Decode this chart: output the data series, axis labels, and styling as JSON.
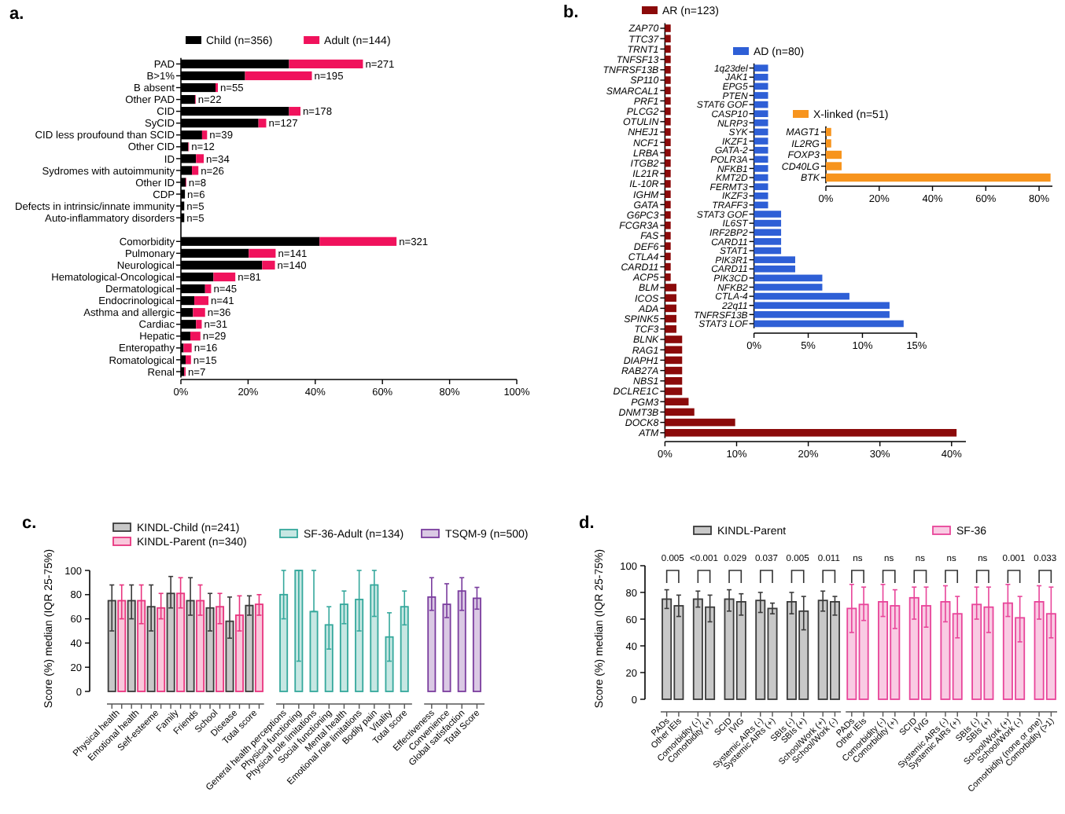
{
  "chart_data": [
    {
      "type": "bar",
      "title": "a.",
      "orientation": "horizontal",
      "stacked": true,
      "legend": "top",
      "categories": [
        "PAD",
        "B>1%",
        "B absent",
        "Other PAD",
        "CID",
        "SyCID",
        "CID less proufound than SCID",
        "Other CID",
        "ID",
        "Sydromes with autoimmunity",
        "Other ID",
        "CDP",
        "Defects in intrinsic/innate immunity",
        "Auto-inflammatory disorders",
        null,
        "Comorbidity",
        "Pulmonary",
        "Neurological",
        "Hematological-Oncological",
        "Dermatological",
        "Endocrinological",
        "Asthma and allergic",
        "Cardiac",
        "Hepatic",
        "Enteropathy",
        "Romatological",
        "Renal"
      ],
      "series": [
        {
          "name": "Child (n=356)",
          "color": "#000000",
          "values": [
            32.2,
            19.1,
            10.3,
            4.2,
            32.2,
            23.1,
            6.3,
            2.2,
            4.5,
            3.3,
            1.4,
            1.2,
            1.0,
            1.0,
            null,
            41.3,
            20.2,
            24.2,
            9.7,
            7.2,
            4.0,
            3.6,
            4.5,
            2.8,
            0.8,
            1.4,
            1.0
          ]
        },
        {
          "name": "Adult (n=144)",
          "color": "#f0125c",
          "values": [
            22.0,
            19.9,
            0.7,
            0.2,
            3.4,
            2.3,
            1.5,
            0.2,
            2.3,
            1.9,
            0.2,
            0,
            0,
            0,
            null,
            22.9,
            8.0,
            3.8,
            6.5,
            1.8,
            4.2,
            3.6,
            1.7,
            3.0,
            2.4,
            1.6,
            0.4
          ]
        }
      ],
      "annotations": [
        "n=271",
        "n=195",
        "n=55",
        "n=22",
        "n=178",
        "n=127",
        "n=39",
        "n=12",
        "n=34",
        "n=26",
        "n=8",
        "n=6",
        "n=5",
        "n=5",
        "n=321",
        "n=141",
        "n=140",
        "n=81",
        "n=45",
        "n=41",
        "n=36",
        "n=31",
        "n=29",
        "n=16",
        "n=15",
        "n=7"
      ],
      "xlim": [
        0,
        100
      ],
      "xticks": [
        {
          "value": 0,
          "label": "0%"
        },
        {
          "value": 20,
          "label": "20%"
        },
        {
          "value": 40,
          "label": "40%"
        },
        {
          "value": 60,
          "label": "60%"
        },
        {
          "value": 80,
          "label": "80%"
        },
        {
          "value": 100,
          "label": "100%"
        }
      ]
    },
    {
      "type": "bar",
      "title": "b.",
      "orientation": "horizontal",
      "legend": "top",
      "categories": [
        "ZAP70",
        "TTC37",
        "TRNT1",
        "TNFSF13",
        "TNFRSF13B",
        "SP110",
        "SMARCAL1",
        "PRF1",
        "PLCG2",
        "OTULIN",
        "NHEJ1",
        "NCF1",
        "LRBA",
        "ITGB2",
        "IL21R",
        "IL-10R",
        "IGHM",
        "GATA",
        "G6PC3",
        "FCGR3A",
        "FAS",
        "DEF6",
        "CTLA4",
        "CARD11",
        "ACP5",
        "BLM",
        "ICOS",
        "ADA",
        "SPINK5",
        "TCF3",
        "BLNK",
        "RAG1",
        "DIAPH1",
        "RAB27A",
        "NBS1",
        "DCLRE1C",
        "PGM3",
        "DNMT3B",
        "DOCK8",
        "ATM"
      ],
      "series": [
        {
          "name": "AR (n=123)",
          "color": "#8b0a0a",
          "values": [
            0.8,
            0.8,
            0.8,
            0.8,
            0.8,
            0.8,
            0.8,
            0.8,
            0.8,
            0.8,
            0.8,
            0.8,
            0.8,
            0.8,
            0.8,
            0.8,
            0.8,
            0.8,
            0.8,
            0.8,
            0.8,
            0.8,
            0.8,
            0.8,
            0.8,
            1.6,
            1.6,
            1.6,
            1.6,
            1.6,
            2.4,
            2.4,
            2.4,
            2.4,
            2.4,
            2.4,
            3.3,
            4.1,
            9.8,
            40.7
          ]
        }
      ],
      "xlim": [
        0,
        42
      ],
      "xticks": [
        {
          "value": 0,
          "label": "0%"
        },
        {
          "value": 10,
          "label": "10%"
        },
        {
          "value": 20,
          "label": "20%"
        },
        {
          "value": 30,
          "label": "30%"
        },
        {
          "value": 40,
          "label": "40%"
        }
      ]
    },
    {
      "type": "bar",
      "orientation": "horizontal",
      "legend": "top",
      "categories": [
        "1q23del",
        "JAK1",
        "EPG5",
        "PTEN",
        "STAT6 GOF",
        "CASP10",
        "NLRP3",
        "SYK",
        "IKZF1",
        "GATA-2",
        "POLR3A",
        "NFKB1",
        "KMT2D",
        "FERMT3",
        "IKZF3",
        "TRAFF3",
        "STAT3 GOF",
        "IL6ST",
        "IRF2BP2",
        "CARD11",
        "STAT1",
        "PIK3R1",
        "CARD11",
        "PIK3CD",
        "NFKB2",
        "CTLA-4",
        "22q11",
        "TNFRSF13B",
        "STAT3 LOF"
      ],
      "series": [
        {
          "name": "AD (n=80)",
          "color": "#2e5fd6",
          "values": [
            1.3,
            1.3,
            1.3,
            1.3,
            1.3,
            1.3,
            1.3,
            1.3,
            1.3,
            1.3,
            1.3,
            1.3,
            1.3,
            1.3,
            1.3,
            1.3,
            2.5,
            2.5,
            2.5,
            2.5,
            2.5,
            3.8,
            3.8,
            6.3,
            6.3,
            8.8,
            12.5,
            12.5,
            13.8
          ]
        }
      ],
      "xlim": [
        0,
        15
      ],
      "xticks": [
        {
          "value": 0,
          "label": "0%"
        },
        {
          "value": 5,
          "label": "5%"
        },
        {
          "value": 10,
          "label": "10%"
        },
        {
          "value": 15,
          "label": "15%"
        }
      ]
    },
    {
      "type": "bar",
      "orientation": "horizontal",
      "legend": "top",
      "categories": [
        "MAGT1",
        "IL2RG",
        "FOXP3",
        "CD40LG",
        "BTK"
      ],
      "series": [
        {
          "name": "X-linked (n=51)",
          "color": "#f7941d",
          "values": [
            2,
            2,
            5.9,
            5.9,
            84.3
          ]
        }
      ],
      "xlim": [
        0,
        85
      ],
      "xticks": [
        {
          "value": 0,
          "label": "0%"
        },
        {
          "value": 20,
          "label": "20%"
        },
        {
          "value": 40,
          "label": "40%"
        },
        {
          "value": 60,
          "label": "60%"
        },
        {
          "value": 80,
          "label": "80%"
        }
      ]
    },
    {
      "type": "bar",
      "title": "c.",
      "ylabel": "Score (%) median (IQR 25-75%)",
      "legend": "top",
      "categories": [
        "Physical health",
        "Emotional health",
        "Self-esteeme",
        "Family",
        "Friends",
        "School",
        "Disease",
        "Total score",
        "General health perceptions",
        "Physical functioning",
        "Physical role limitations",
        "Social functioning",
        "Mental health",
        "Emotional role limitations",
        "Bodily pain",
        "Vitality",
        "Total score",
        "Effectiveness",
        "Convenience",
        "Global satisfaction",
        "Total Score"
      ],
      "series": [
        {
          "name": "KINDL-Child (n=241)",
          "color": "#3a3a3a",
          "values": [
            75,
            75,
            70,
            81,
            75,
            69,
            58,
            71,
            null,
            null,
            null,
            null,
            null,
            null,
            null,
            null,
            null,
            null,
            null,
            null,
            null
          ],
          "errors": [
            [
              50,
              88
            ],
            [
              60,
              88
            ],
            [
              50,
              88
            ],
            [
              69,
              95
            ],
            [
              63,
              94
            ],
            [
              50,
              81
            ],
            [
              44,
              78
            ],
            [
              63,
              79
            ],
            null,
            null,
            null,
            null,
            null,
            null,
            null,
            null,
            null,
            null,
            null,
            null,
            null
          ]
        },
        {
          "name": "KINDL-Parent (n=340)",
          "color": "#e8357f",
          "values": [
            75,
            75,
            69,
            81,
            75,
            70,
            63,
            72,
            null,
            null,
            null,
            null,
            null,
            null,
            null,
            null,
            null,
            null,
            null,
            null,
            null
          ],
          "errors": [
            [
              60,
              88
            ],
            [
              56,
              88
            ],
            [
              60,
              81
            ],
            [
              69,
              94
            ],
            [
              63,
              88
            ],
            [
              56,
              81
            ],
            [
              50,
              79
            ],
            [
              63,
              80
            ],
            null,
            null,
            null,
            null,
            null,
            null,
            null,
            null,
            null,
            null,
            null,
            null,
            null
          ]
        },
        {
          "name": "SF-36-Adult (n=134)",
          "color": "#35a89c",
          "values": [
            null,
            null,
            null,
            null,
            null,
            null,
            null,
            null,
            80,
            100,
            66,
            55,
            72,
            76,
            88,
            45,
            70,
            null,
            null,
            null,
            null
          ],
          "errors": [
            null,
            null,
            null,
            null,
            null,
            null,
            null,
            null,
            [
              60,
              100
            ],
            [
              25,
              100
            ],
            [
              66,
              100
            ],
            [
              35,
              70
            ],
            [
              56,
              83
            ],
            [
              50,
              100
            ],
            [
              62,
              100
            ],
            [
              25,
              65
            ],
            [
              55,
              83
            ],
            null,
            null,
            null,
            null
          ]
        },
        {
          "name": "TSQM-9 (n=500)",
          "color": "#7a3d9e",
          "values": [
            null,
            null,
            null,
            null,
            null,
            null,
            null,
            null,
            null,
            null,
            null,
            null,
            null,
            null,
            null,
            null,
            null,
            78,
            72,
            83,
            77
          ],
          "errors": [
            null,
            null,
            null,
            null,
            null,
            null,
            null,
            null,
            null,
            null,
            null,
            null,
            null,
            null,
            null,
            null,
            null,
            [
              67,
              94
            ],
            [
              61,
              89
            ],
            [
              67,
              94
            ],
            [
              68,
              86
            ]
          ]
        }
      ],
      "ylim": [
        0,
        100
      ],
      "yticks": [
        0,
        20,
        40,
        60,
        80,
        100
      ]
    },
    {
      "type": "bar",
      "title": "d.",
      "ylabel": "Score (%) median (IQR 25-75%)",
      "legend": "top",
      "categories": [
        "PADs",
        "Other IEIs",
        "Comorbidity (-)",
        "Comorbidity (+)",
        "SCID",
        "IVIG",
        "Systemic AIRs (-)",
        "Systemic AIRs (+)",
        "SBIs (-)",
        "SBIs (+)",
        "School/Work (+)",
        "School/Work (-)",
        "PADs",
        "Other IEIs",
        "Comorbidity (-)",
        "Comorbidity (+)",
        "SCID",
        "IVIG",
        "Systemic AIRs (-)",
        "Systemic AIRs (+)",
        "SBIs (-)",
        "SBIs (+)",
        "School/Work (+)",
        "School/Work (-)",
        "Comorbidity (none or one)",
        "Comorbidity (>1)"
      ],
      "series": [
        {
          "name": "KINDL-Parent",
          "color": "#3a3a3a",
          "values": [
            75,
            70,
            75,
            69,
            75,
            73,
            74,
            68,
            73,
            66,
            74,
            73,
            null,
            null,
            null,
            null,
            null,
            null,
            null,
            null,
            null,
            null,
            null,
            null,
            null,
            null
          ],
          "errors": [
            [
              68,
              82
            ],
            [
              62,
              78
            ],
            [
              69,
              81
            ],
            [
              58,
              78
            ],
            [
              66,
              82
            ],
            [
              63,
              79
            ],
            [
              65,
              80
            ],
            [
              64,
              72
            ],
            [
              64,
              80
            ],
            [
              52,
              77
            ],
            [
              66,
              81
            ],
            [
              63,
              77
            ],
            null,
            null,
            null,
            null,
            null,
            null,
            null,
            null,
            null,
            null,
            null,
            null,
            null,
            null
          ]
        },
        {
          "name": "SF-36",
          "color": "#e8459a",
          "values": [
            null,
            null,
            null,
            null,
            null,
            null,
            null,
            null,
            null,
            null,
            null,
            null,
            68,
            71,
            73,
            70,
            76,
            70,
            73,
            64,
            71,
            69,
            72,
            61,
            73,
            64
          ],
          "errors": [
            null,
            null,
            null,
            null,
            null,
            null,
            null,
            null,
            null,
            null,
            null,
            null,
            [
              50,
              86
            ],
            [
              59,
              84
            ],
            [
              62,
              86
            ],
            [
              53,
              82
            ],
            [
              60,
              84
            ],
            [
              54,
              84
            ],
            [
              58,
              85
            ],
            [
              46,
              77
            ],
            [
              60,
              84
            ],
            [
              50,
              84
            ],
            [
              62,
              86
            ],
            [
              43,
              77
            ],
            [
              60,
              85
            ],
            [
              46,
              84
            ]
          ]
        }
      ],
      "annotations": [
        "0.005",
        "<0.001",
        "0.029",
        "0.037",
        "0.005",
        "0.011",
        "ns",
        "ns",
        "ns",
        "ns",
        "ns",
        "0.001",
        "0.033"
      ],
      "ylim": [
        0,
        100
      ],
      "yticks": [
        0,
        20,
        40,
        60,
        80,
        100
      ]
    }
  ]
}
